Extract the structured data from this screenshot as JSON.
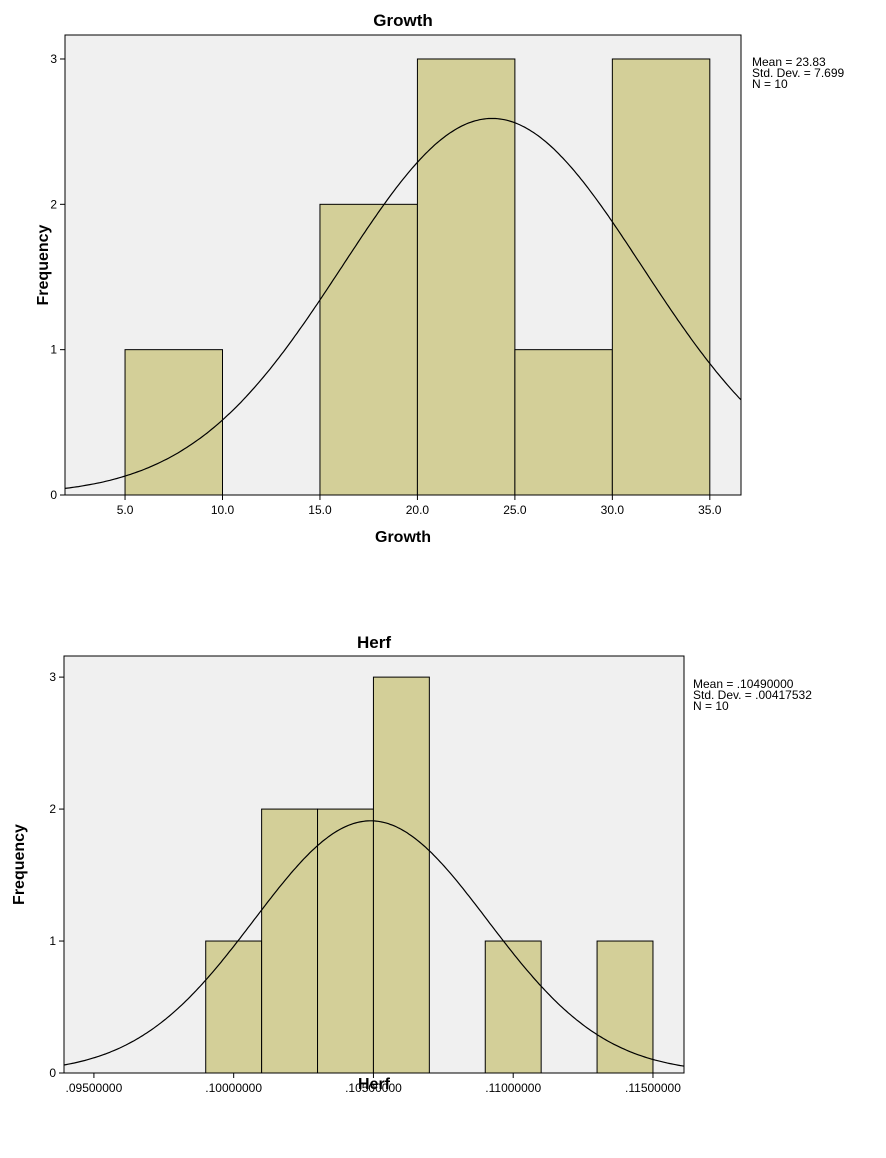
{
  "chart_data": [
    {
      "type": "histogram",
      "title": "Growth",
      "x_label": "Growth",
      "y_label": "Frequency",
      "bins": [
        5,
        10,
        15,
        20,
        25,
        30,
        35
      ],
      "counts": [
        1,
        0,
        2,
        3,
        1,
        3
      ],
      "color": "#d3cf98",
      "xlim": [
        1.92,
        36.6
      ],
      "ylim": [
        0,
        3.165
      ],
      "xticks": [
        {
          "value": 5,
          "label": "5.0"
        },
        {
          "value": 10,
          "label": "10.0"
        },
        {
          "value": 15,
          "label": "15.0"
        },
        {
          "value": 20,
          "label": "20.0"
        },
        {
          "value": 25,
          "label": "25.0"
        },
        {
          "value": 30,
          "label": "30.0"
        },
        {
          "value": 35,
          "label": "35.0"
        }
      ],
      "yticks": [
        0,
        1,
        2,
        3
      ],
      "annotations": [
        "Mean = 23.83",
        "Std. Dev. = 7.699",
        "N = 10"
      ],
      "normal_curve": {
        "mean": 23.83,
        "std_dev": 7.699,
        "n": 10
      }
    },
    {
      "type": "histogram",
      "title": "Herf",
      "x_label": "Herf",
      "y_label": "Frequency",
      "bins": [
        0.099,
        0.101,
        0.103,
        0.105,
        0.107,
        0.109,
        0.111,
        0.113,
        0.115
      ],
      "counts": [
        1,
        2,
        2,
        3,
        0,
        1,
        0,
        1
      ],
      "color": "#d3cf98",
      "xlim": [
        0.09393,
        0.11611
      ],
      "ylim": [
        0,
        3.16
      ],
      "xticks": [
        {
          "value": 0.095,
          "label": ".09500000"
        },
        {
          "value": 0.1,
          "label": ".10000000"
        },
        {
          "value": 0.105,
          "label": ".10500000"
        },
        {
          "value": 0.11,
          "label": ".11000000"
        },
        {
          "value": 0.115,
          "label": ".11500000"
        }
      ],
      "yticks": [
        0,
        1,
        2,
        3
      ],
      "annotations": [
        "Mean = .10490000",
        "Std. Dev. = .00417532",
        "N = 10"
      ],
      "normal_curve": {
        "mean": 0.1049,
        "std_dev": 0.00417532,
        "n": 10
      }
    }
  ]
}
